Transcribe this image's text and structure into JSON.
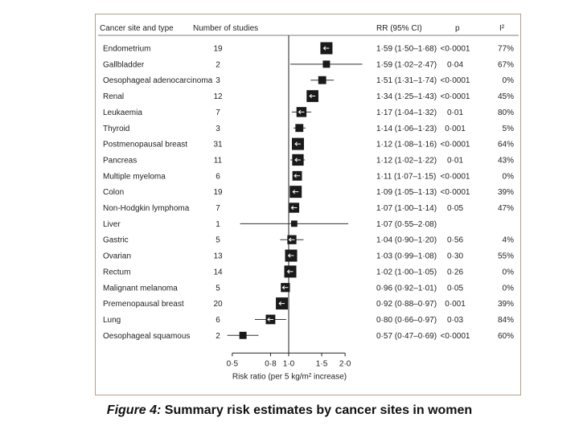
{
  "caption": {
    "label": "Figure 4:",
    "text": " Summary risk estimates by cancer sites in women"
  },
  "headers": {
    "site": "Cancer site and type",
    "studies": "Number of studies",
    "rr": "RR (95% CI)",
    "p": "p",
    "i2": "I²"
  },
  "chart_data": {
    "type": "forest",
    "xlabel": "Risk ratio (per 5 kg/m² increase)",
    "x_ticks": [
      0.5,
      0.8,
      1.0,
      1.5,
      2.0
    ],
    "x_tick_labels": [
      "0·5",
      "0·8",
      "1·0",
      "1·5",
      "2·0"
    ],
    "reference_value": 1.0,
    "x_scale": "log",
    "rows": [
      {
        "site": "Endometrium",
        "n": "19",
        "rr": 1.59,
        "lo": 1.5,
        "hi": 1.68,
        "rr_text": "1·59 (1·50–1·68)",
        "p": "<0·0001",
        "i2": "77%"
      },
      {
        "site": "Gallbladder",
        "n": "2",
        "rr": 1.59,
        "lo": 1.02,
        "hi": 2.47,
        "rr_text": "1·59 (1·02–2·47)",
        "p": "0·04",
        "i2": "67%"
      },
      {
        "site": "Oesophageal adenocarcinoma",
        "n": "3",
        "rr": 1.51,
        "lo": 1.31,
        "hi": 1.74,
        "rr_text": "1·51 (1·31–1·74)",
        "p": "<0·0001",
        "i2": "0%"
      },
      {
        "site": "Renal",
        "n": "12",
        "rr": 1.34,
        "lo": 1.25,
        "hi": 1.43,
        "rr_text": "1·34 (1·25–1·43)",
        "p": "<0·0001",
        "i2": "45%"
      },
      {
        "site": "Leukaemia",
        "n": "7",
        "rr": 1.17,
        "lo": 1.04,
        "hi": 1.32,
        "rr_text": "1·17 (1·04–1·32)",
        "p": "0·01",
        "i2": "80%"
      },
      {
        "site": "Thyroid",
        "n": "3",
        "rr": 1.14,
        "lo": 1.06,
        "hi": 1.23,
        "rr_text": "1·14 (1·06–1·23)",
        "p": "0·001",
        "i2": "5%"
      },
      {
        "site": "Postmenopausal breast",
        "n": "31",
        "rr": 1.12,
        "lo": 1.08,
        "hi": 1.16,
        "rr_text": "1·12 (1·08–1·16)",
        "p": "<0·0001",
        "i2": "64%"
      },
      {
        "site": "Pancreas",
        "n": "11",
        "rr": 1.12,
        "lo": 1.02,
        "hi": 1.22,
        "rr_text": "1·12 (1·02–1·22)",
        "p": "0·01",
        "i2": "43%"
      },
      {
        "site": "Multiple myeloma",
        "n": "6",
        "rr": 1.11,
        "lo": 1.07,
        "hi": 1.15,
        "rr_text": "1·11 (1·07–1·15)",
        "p": "<0·0001",
        "i2": "0%"
      },
      {
        "site": "Colon",
        "n": "19",
        "rr": 1.09,
        "lo": 1.05,
        "hi": 1.13,
        "rr_text": "1·09 (1·05–1·13)",
        "p": "<0·0001",
        "i2": "39%"
      },
      {
        "site": "Non-Hodgkin lymphoma",
        "n": "7",
        "rr": 1.07,
        "lo": 1.0,
        "hi": 1.14,
        "rr_text": "1·07 (1·00–1·14)",
        "p": "0·05",
        "i2": "47%"
      },
      {
        "site": "Liver",
        "n": "1",
        "rr": 1.07,
        "lo": 0.55,
        "hi": 2.08,
        "rr_text": "1·07 (0·55–2·08)",
        "p": "",
        "i2": ""
      },
      {
        "site": "Gastric",
        "n": "5",
        "rr": 1.04,
        "lo": 0.9,
        "hi": 1.2,
        "rr_text": "1·04 (0·90–1·20)",
        "p": "0·56",
        "i2": "4%"
      },
      {
        "site": "Ovarian",
        "n": "13",
        "rr": 1.03,
        "lo": 0.99,
        "hi": 1.08,
        "rr_text": "1·03 (0·99–1·08)",
        "p": "0·30",
        "i2": "55%"
      },
      {
        "site": "Rectum",
        "n": "14",
        "rr": 1.02,
        "lo": 1.0,
        "hi": 1.05,
        "rr_text": "1·02 (1·00–1·05)",
        "p": "0·26",
        "i2": "0%"
      },
      {
        "site": "Malignant melanoma",
        "n": "5",
        "rr": 0.96,
        "lo": 0.92,
        "hi": 1.01,
        "rr_text": "0·96 (0·92–1·01)",
        "p": "0·05",
        "i2": "0%"
      },
      {
        "site": "Premenopausal breast",
        "n": "20",
        "rr": 0.92,
        "lo": 0.88,
        "hi": 0.97,
        "rr_text": "0·92 (0·88–0·97)",
        "p": "0·001",
        "i2": "39%"
      },
      {
        "site": "Lung",
        "n": "6",
        "rr": 0.8,
        "lo": 0.66,
        "hi": 0.97,
        "rr_text": "0·80 (0·66–0·97)",
        "p": "0·03",
        "i2": "84%"
      },
      {
        "site": "Oesophageal squamous",
        "n": "2",
        "rr": 0.57,
        "lo": 0.47,
        "hi": 0.69,
        "rr_text": "0·57 (0·47–0·69)",
        "p": "<0·0001",
        "i2": "60%"
      }
    ]
  }
}
